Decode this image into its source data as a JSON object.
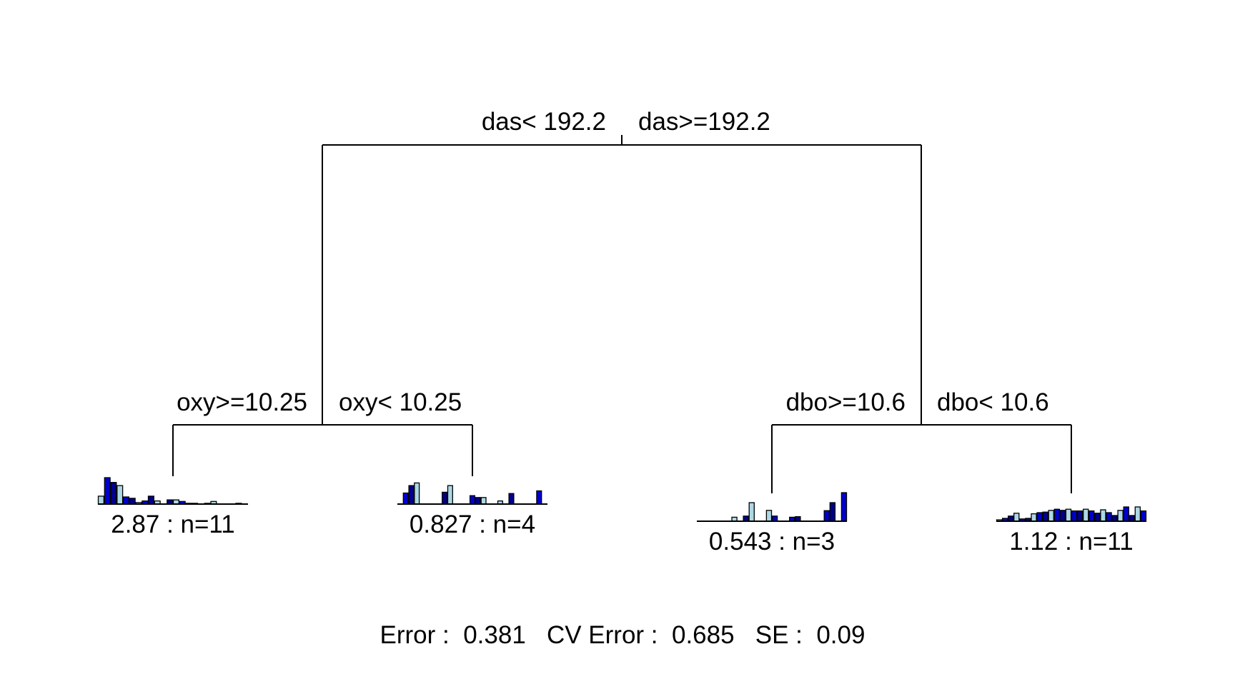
{
  "colors": {
    "light": "#add8e6",
    "mid": "#0000cd",
    "dark": "#00008b",
    "line": "#000000"
  },
  "root_split": {
    "left_label": "das< 192.2",
    "right_label": "das>=192.2"
  },
  "left_split": {
    "left_label": "oxy>=10.25",
    "right_label": "oxy< 10.25"
  },
  "right_split": {
    "left_label": "dbo>=10.6",
    "right_label": "dbo< 10.6"
  },
  "leaves": [
    {
      "label": "2.87 : n=11",
      "bars": [
        0.3,
        1.0,
        0.82,
        0.7,
        0.27,
        0.22,
        0.06,
        0.12,
        0.3,
        0.12,
        0.0,
        0.16,
        0.16,
        0.1,
        0.03,
        0.03,
        0.0,
        0.03,
        0.1,
        0.0,
        0.0,
        0.0,
        0.03,
        0.0
      ]
    },
    {
      "label": "0.827 : n=4",
      "bars": [
        0.0,
        0.42,
        0.7,
        0.8,
        0.0,
        0.0,
        0.0,
        0.0,
        0.45,
        0.7,
        0.0,
        0.0,
        0.0,
        0.32,
        0.25,
        0.25,
        0.0,
        0.0,
        0.12,
        0.0,
        0.4,
        0.0,
        0.0,
        0.0,
        0.0,
        0.5,
        0.0
      ]
    },
    {
      "label": "0.543 : n=3",
      "bars": [
        0.0,
        0.0,
        0.0,
        0.0,
        0.0,
        0.0,
        0.14,
        0.0,
        0.18,
        0.65,
        0.0,
        0.0,
        0.38,
        0.18,
        0.0,
        0.0,
        0.14,
        0.16,
        0.0,
        0.0,
        0.0,
        0.0,
        0.37,
        0.65,
        0.0,
        1.0
      ]
    },
    {
      "label": "1.12 : n=11",
      "bars": [
        0.05,
        0.1,
        0.18,
        0.28,
        0.08,
        0.1,
        0.26,
        0.3,
        0.32,
        0.38,
        0.42,
        0.38,
        0.42,
        0.36,
        0.36,
        0.42,
        0.36,
        0.28,
        0.4,
        0.3,
        0.2,
        0.38,
        0.5,
        0.2,
        0.5,
        0.36
      ]
    }
  ],
  "footer": {
    "text": "Error :  0.381   CV Error :  0.685   SE :  0.09"
  }
}
